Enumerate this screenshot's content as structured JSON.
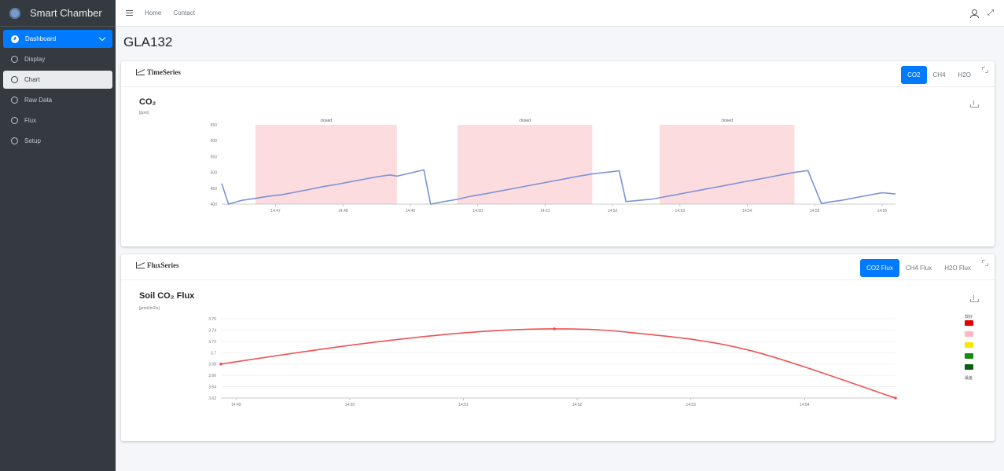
{
  "brand": {
    "name": "Smart Chamber",
    "logo_icon": "chamber-logo-icon"
  },
  "sidebar": {
    "items": [
      {
        "label": "Dashboard",
        "icon": "gauge-icon"
      },
      {
        "label": "Display",
        "icon": "circle-icon"
      },
      {
        "label": "Chart",
        "icon": "circle-icon"
      },
      {
        "label": "Raw Data",
        "icon": "circle-icon"
      },
      {
        "label": "Flux",
        "icon": "circle-icon"
      },
      {
        "label": "Setup",
        "icon": "circle-icon"
      }
    ]
  },
  "topnav": {
    "home": "Home",
    "contact": "Contact",
    "menu_icon": "hamburger-icon",
    "user_icon": "user-icon",
    "fullscreen_icon": "expand-icon"
  },
  "page": {
    "title": "GLA132"
  },
  "timeseries_card": {
    "title": "TimeSeries",
    "tabs": [
      "CO2",
      "CH4",
      "H2O"
    ],
    "active_tab": "CO2",
    "chart_title": "CO₂",
    "unit": "[ppm]"
  },
  "flux_card": {
    "title": "FluxSeries",
    "tabs": [
      "CO2 Flux",
      "CH4 Flux",
      "H2O Flux"
    ],
    "active_tab": "CO2 Flux",
    "chart_title": "Soil CO₂ Flux",
    "unit": "[µmol/m2/s]",
    "legend_top": "较好",
    "legend_bottom": "最差"
  },
  "colors": {
    "accent": "#007bff",
    "sidebar": "#343a40",
    "line": "#7b93d6",
    "flux_line": "#f05252",
    "band": "#fcdcdf"
  },
  "chart_data": [
    {
      "type": "line",
      "title": "CO₂",
      "ylabel": "[ppm]",
      "ylim": [
        400,
        650
      ],
      "yticks": [
        400,
        450,
        500,
        550,
        600,
        650
      ],
      "xlim": [
        "14:46:12",
        "14:56:12"
      ],
      "xticks": [
        "14:47",
        "14:48",
        "14:49",
        "14:50",
        "14:51",
        "14:52",
        "14:53",
        "14:54",
        "14:55",
        "14:56"
      ],
      "bands": [
        {
          "label": "closed",
          "start": "14:46:42",
          "end": "14:48:48"
        },
        {
          "label": "closed",
          "start": "14:49:42",
          "end": "14:51:42"
        },
        {
          "label": "closed",
          "start": "14:52:42",
          "end": "14:54:42"
        }
      ],
      "series": [
        {
          "x": [
            "14:46:12",
            "14:46:18",
            "14:46:30",
            "14:46:42",
            "14:46:54",
            "14:47:06",
            "14:47:18",
            "14:47:30",
            "14:47:42",
            "14:47:54",
            "14:48:06",
            "14:48:18",
            "14:48:30",
            "14:48:42",
            "14:48:48",
            "14:49:00",
            "14:49:12",
            "14:49:18",
            "14:49:30",
            "14:49:42",
            "14:49:54",
            "14:50:06",
            "14:50:18",
            "14:50:30",
            "14:50:42",
            "14:50:54",
            "14:51:06",
            "14:51:18",
            "14:51:30",
            "14:51:42",
            "14:51:54",
            "14:52:06",
            "14:52:12",
            "14:52:24",
            "14:52:36",
            "14:52:42",
            "14:52:54",
            "14:53:06",
            "14:53:18",
            "14:53:30",
            "14:53:42",
            "14:53:54",
            "14:54:06",
            "14:54:18",
            "14:54:30",
            "14:54:42",
            "14:54:54",
            "14:55:06",
            "14:55:12",
            "14:55:24",
            "14:55:36",
            "14:55:48",
            "14:56:00",
            "14:56:12"
          ],
          "values": [
            465,
            400,
            412,
            418,
            425,
            430,
            438,
            446,
            455,
            462,
            470,
            478,
            486,
            492,
            488,
            498,
            508,
            400,
            408,
            415,
            425,
            432,
            440,
            448,
            456,
            464,
            472,
            480,
            488,
            495,
            500,
            505,
            408,
            412,
            416,
            420,
            428,
            436,
            444,
            452,
            460,
            468,
            476,
            484,
            492,
            500,
            506,
            402,
            406,
            412,
            420,
            428,
            436,
            432
          ]
        }
      ]
    },
    {
      "type": "line",
      "title": "Soil CO₂ Flux",
      "ylabel": "[µmol/m2/s]",
      "ylim": [
        3.62,
        3.76
      ],
      "yticks": [
        3.62,
        3.64,
        3.66,
        3.68,
        3.7,
        3.72,
        3.74,
        3.76
      ],
      "xlim": [
        "14:48:52",
        "14:54:48"
      ],
      "xticks": [
        "14:49",
        "14:50",
        "14:51",
        "14:52",
        "14:53",
        "14:54"
      ],
      "legend": {
        "position": "right",
        "colors": [
          "#e00000",
          "#ffb6c1",
          "#f5e700",
          "#138a13",
          "#0b5e0b"
        ]
      },
      "series": [
        {
          "x": [
            "14:48:52",
            "14:50:00",
            "14:51:00",
            "14:51:48",
            "14:52:30",
            "14:53:30",
            "14:54:48"
          ],
          "values": [
            3.68,
            3.713,
            3.735,
            3.742,
            3.735,
            3.705,
            3.62
          ],
          "markers": [
            0,
            3,
            6
          ]
        }
      ]
    }
  ]
}
